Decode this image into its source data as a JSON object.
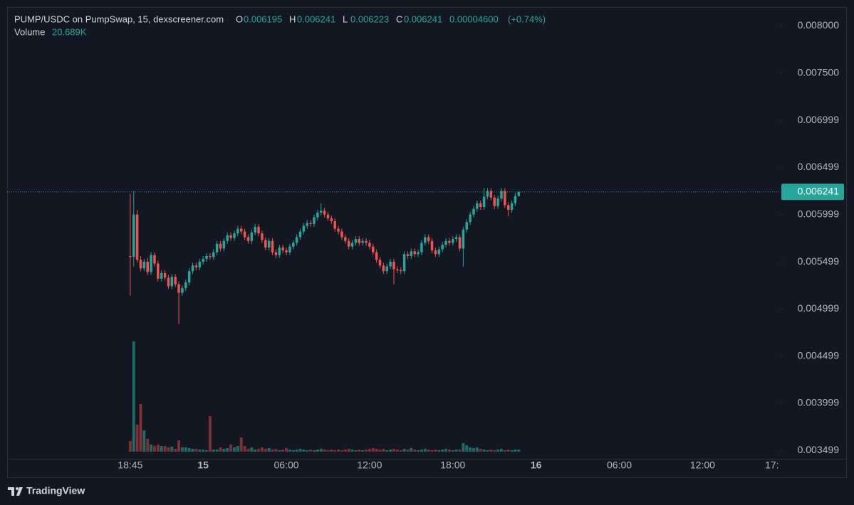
{
  "chart_data": {
    "type": "candlestick",
    "title": "PUMP/USDC on PumpSwap, 15, dexscreener.com",
    "legend": {
      "o": "O",
      "h": "H",
      "l": "L",
      "c": "C",
      "change": "0.00004600",
      "change_pct": "(+0.74%)",
      "volume_title": "Volume",
      "volume": "20.689K"
    },
    "brand": "TradingView",
    "up_color": "#26a69a",
    "down_color": "#ef5350",
    "volume_up_color": "#1e6b63",
    "volume_down_color": "#7e2f37",
    "last_price_line": true,
    "open": [
      0.00556,
      0.00555,
      0.006,
      0.00552,
      0.00543,
      0.0055,
      0.00539,
      0.00557,
      0.00548,
      0.00532,
      0.00538,
      0.00533,
      0.00524,
      0.00534,
      0.00526,
      0.00517,
      0.00522,
      0.00528,
      0.0054,
      0.00546,
      0.00544,
      0.0055,
      0.00553,
      0.00556,
      0.00555,
      0.0056,
      0.00569,
      0.00564,
      0.00572,
      0.00578,
      0.00575,
      0.0058,
      0.00585,
      0.00582,
      0.00576,
      0.00572,
      0.00581,
      0.00587,
      0.0058,
      0.00573,
      0.00565,
      0.00572,
      0.0056,
      0.00557,
      0.00565,
      0.00562,
      0.0056,
      0.00566,
      0.0057,
      0.00576,
      0.00582,
      0.00588,
      0.00591,
      0.0059,
      0.00597,
      0.00602,
      0.00604,
      0.006,
      0.00596,
      0.00593,
      0.00585,
      0.00582,
      0.00576,
      0.00572,
      0.00566,
      0.0057,
      0.00574,
      0.0057,
      0.00572,
      0.0057,
      0.00566,
      0.0056,
      0.00552,
      0.00546,
      0.0054,
      0.00545,
      0.0055,
      0.00542,
      0.00541,
      0.0054,
      0.00558,
      0.00556,
      0.00561,
      0.00558,
      0.0056,
      0.0057,
      0.00576,
      0.00572,
      0.00562,
      0.00558,
      0.00563,
      0.00568,
      0.00572,
      0.0057,
      0.00574,
      0.00576,
      0.00564,
      0.00584,
      0.00592,
      0.006,
      0.00606,
      0.00612,
      0.00608,
      0.00619,
      0.00625,
      0.00618,
      0.00609,
      0.00617,
      0.00625,
      0.0061,
      0.00605,
      0.00612,
      0.006195
    ],
    "high": [
      0.00622,
      0.00625,
      0.00605,
      0.00556,
      0.00553,
      0.00554,
      0.0056,
      0.0056,
      0.00551,
      0.00541,
      0.00541,
      0.00536,
      0.00537,
      0.00537,
      0.00529,
      0.00525,
      0.00531,
      0.00543,
      0.00549,
      0.00549,
      0.00553,
      0.00556,
      0.00559,
      0.00559,
      0.00563,
      0.00572,
      0.00572,
      0.00575,
      0.00581,
      0.00581,
      0.00583,
      0.00588,
      0.00588,
      0.00585,
      0.00579,
      0.00584,
      0.0059,
      0.0059,
      0.00583,
      0.00576,
      0.00575,
      0.00575,
      0.00563,
      0.00568,
      0.00568,
      0.00565,
      0.00569,
      0.00573,
      0.00579,
      0.00585,
      0.00591,
      0.00594,
      0.00594,
      0.006,
      0.00605,
      0.00612,
      0.00607,
      0.00603,
      0.00599,
      0.00596,
      0.00588,
      0.00585,
      0.00579,
      0.00575,
      0.00573,
      0.00577,
      0.00577,
      0.00575,
      0.00575,
      0.00573,
      0.00569,
      0.00563,
      0.00555,
      0.00549,
      0.00548,
      0.00553,
      0.00553,
      0.00545,
      0.00544,
      0.00561,
      0.00561,
      0.00564,
      0.00564,
      0.00563,
      0.00573,
      0.00579,
      0.00579,
      0.00575,
      0.00565,
      0.00566,
      0.00571,
      0.00575,
      0.00575,
      0.00577,
      0.00579,
      0.00579,
      0.00587,
      0.00595,
      0.00603,
      0.00609,
      0.00615,
      0.00615,
      0.00628,
      0.00628,
      0.00628,
      0.00621,
      0.0062,
      0.00628,
      0.00628,
      0.00613,
      0.00615,
      0.00623,
      0.006241
    ],
    "low": [
      0.00514,
      0.00545,
      0.00549,
      0.0054,
      0.0054,
      0.00536,
      0.00536,
      0.00545,
      0.00529,
      0.00529,
      0.0053,
      0.00521,
      0.00521,
      0.00523,
      0.00484,
      0.00514,
      0.00519,
      0.00525,
      0.00537,
      0.00541,
      0.00541,
      0.00547,
      0.0055,
      0.00552,
      0.00552,
      0.00557,
      0.00561,
      0.00561,
      0.00569,
      0.00572,
      0.00572,
      0.00577,
      0.00579,
      0.00573,
      0.00569,
      0.00569,
      0.00578,
      0.00577,
      0.0057,
      0.00562,
      0.00562,
      0.00557,
      0.00554,
      0.00554,
      0.00559,
      0.00557,
      0.00557,
      0.00563,
      0.00567,
      0.00573,
      0.00579,
      0.00585,
      0.00587,
      0.00587,
      0.00594,
      0.00599,
      0.00597,
      0.00593,
      0.0059,
      0.00582,
      0.00579,
      0.00573,
      0.00569,
      0.00563,
      0.00563,
      0.00567,
      0.00567,
      0.00567,
      0.00567,
      0.00563,
      0.00557,
      0.00549,
      0.00543,
      0.00537,
      0.00537,
      0.00542,
      0.00526,
      0.00538,
      0.00537,
      0.00537,
      0.00553,
      0.00553,
      0.00555,
      0.00555,
      0.00557,
      0.00567,
      0.00569,
      0.00559,
      0.00555,
      0.00555,
      0.0056,
      0.00565,
      0.00567,
      0.00567,
      0.00571,
      0.00561,
      0.00545,
      0.00581,
      0.00589,
      0.00597,
      0.00603,
      0.00605,
      0.00605,
      0.00616,
      0.00615,
      0.00606,
      0.00606,
      0.00614,
      0.00607,
      0.00598,
      0.00602,
      0.00609,
      0.006223
    ],
    "close": [
      0.00555,
      0.006,
      0.00552,
      0.00543,
      0.0055,
      0.00539,
      0.00557,
      0.00548,
      0.00532,
      0.00538,
      0.00533,
      0.00524,
      0.00534,
      0.00526,
      0.00517,
      0.00522,
      0.00528,
      0.0054,
      0.00546,
      0.00544,
      0.0055,
      0.00553,
      0.00556,
      0.00555,
      0.0056,
      0.00569,
      0.00564,
      0.00572,
      0.00578,
      0.00575,
      0.0058,
      0.00585,
      0.00582,
      0.00576,
      0.00572,
      0.00581,
      0.00587,
      0.0058,
      0.00573,
      0.00565,
      0.00572,
      0.0056,
      0.00557,
      0.00565,
      0.00562,
      0.0056,
      0.00566,
      0.0057,
      0.00576,
      0.00582,
      0.00588,
      0.00591,
      0.0059,
      0.00597,
      0.00602,
      0.00604,
      0.006,
      0.00596,
      0.00593,
      0.00585,
      0.00582,
      0.00576,
      0.00572,
      0.00566,
      0.0057,
      0.00574,
      0.0057,
      0.00572,
      0.0057,
      0.00566,
      0.0056,
      0.00552,
      0.00546,
      0.0054,
      0.00545,
      0.0055,
      0.00542,
      0.00541,
      0.0054,
      0.00558,
      0.00556,
      0.00561,
      0.00558,
      0.0056,
      0.0057,
      0.00576,
      0.00572,
      0.00562,
      0.00558,
      0.00563,
      0.00568,
      0.00572,
      0.0057,
      0.00574,
      0.00576,
      0.00564,
      0.00584,
      0.00592,
      0.006,
      0.00606,
      0.00612,
      0.00608,
      0.00619,
      0.00625,
      0.00618,
      0.00609,
      0.00617,
      0.00625,
      0.0061,
      0.00605,
      0.00612,
      0.006195,
      0.006241
    ],
    "volume": [
      105000,
      1085000,
      266000,
      469000,
      210000,
      126000,
      70000,
      56000,
      70000,
      56000,
      56000,
      42000,
      49000,
      28000,
      112000,
      42000,
      42000,
      35000,
      28000,
      28000,
      21000,
      21000,
      14000,
      350000,
      21000,
      21000,
      42000,
      28000,
      35000,
      70000,
      42000,
      56000,
      140000,
      56000,
      28000,
      42000,
      21000,
      28000,
      42000,
      28000,
      35000,
      21000,
      28000,
      14000,
      21000,
      35000,
      21000,
      14000,
      21000,
      28000,
      21000,
      14000,
      21000,
      14000,
      21000,
      28000,
      21000,
      14000,
      21000,
      14000,
      21000,
      14000,
      21000,
      28000,
      21000,
      14000,
      21000,
      14000,
      21000,
      28000,
      35000,
      28000,
      21000,
      28000,
      14000,
      21000,
      28000,
      21000,
      14000,
      28000,
      21000,
      35000,
      21000,
      14000,
      21000,
      28000,
      21000,
      14000,
      21000,
      14000,
      21000,
      28000,
      21000,
      14000,
      21000,
      21000,
      84000,
      63000,
      42000,
      35000,
      42000,
      28000,
      21000,
      14000,
      21000,
      14000,
      21000,
      28000,
      14000,
      21000,
      14000,
      21000,
      20689
    ],
    "xlim": [
      -35.5,
      187.3
    ],
    "xticks": [
      {
        "value": 0,
        "label": "18:45"
      },
      {
        "value": 21,
        "label": "15"
      },
      {
        "value": 45,
        "label": "06:00"
      },
      {
        "value": 69,
        "label": "12:00"
      },
      {
        "value": 93,
        "label": "18:00"
      },
      {
        "value": 117,
        "label": "16"
      },
      {
        "value": 141,
        "label": "06:00"
      },
      {
        "value": 165,
        "label": "12:00"
      },
      {
        "value": 185,
        "label": "17:"
      }
    ],
    "ylim": [
      0.00341,
      0.0082
    ],
    "yticks": [
      {
        "value": 0.008,
        "label": "0.008000"
      },
      {
        "value": 0.0075,
        "label": "0.007500"
      },
      {
        "value": 0.006999,
        "label": "0.006999"
      },
      {
        "value": 0.006499,
        "label": "0.006499"
      },
      {
        "value": 0.005999,
        "label": "0.005999"
      },
      {
        "value": 0.005499,
        "label": "0.005499"
      },
      {
        "value": 0.004999,
        "label": "0.004999"
      },
      {
        "value": 0.004499,
        "label": "0.004499"
      },
      {
        "value": 0.003999,
        "label": "0.003999"
      },
      {
        "value": 0.003499,
        "label": "0.003499"
      }
    ]
  }
}
